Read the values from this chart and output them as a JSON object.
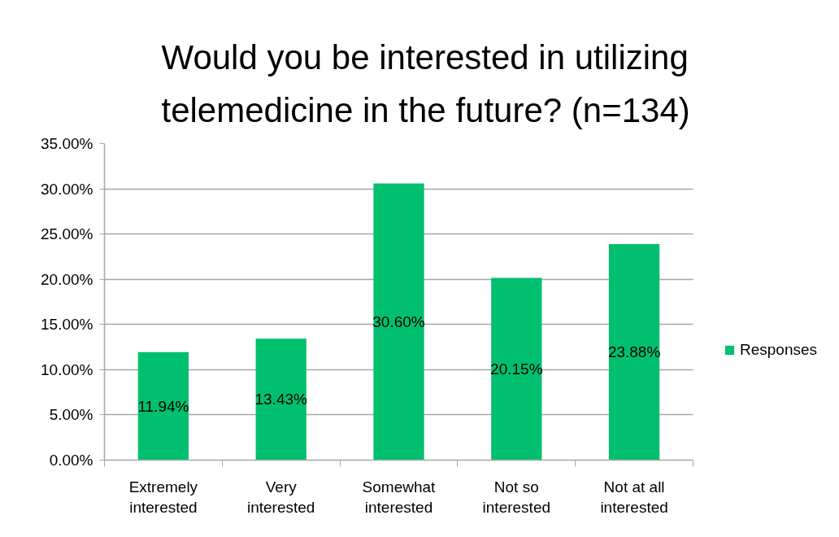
{
  "chart_data": {
    "type": "bar",
    "title": "Would you be interested in utilizing telemedicine in the future? (n=134)",
    "categories": [
      "Extremely interested",
      "Very interested",
      "Somewhat interested",
      "Not so interested",
      "Not at all interested"
    ],
    "series": [
      {
        "name": "Responses",
        "color": "#00bf6f",
        "values": [
          11.94,
          13.43,
          30.6,
          20.15,
          23.88
        ],
        "value_labels": [
          "11.94%",
          "13.43%",
          "30.60%",
          "20.15%",
          "23.88%"
        ]
      }
    ],
    "ylim": [
      0,
      35
    ],
    "yticks": [
      {
        "value": 0,
        "label": "0.00%"
      },
      {
        "value": 5,
        "label": "5.00%"
      },
      {
        "value": 10,
        "label": "10.00%"
      },
      {
        "value": 15,
        "label": "15.00%"
      },
      {
        "value": 20,
        "label": "20.00%"
      },
      {
        "value": 25,
        "label": "25.00%"
      },
      {
        "value": 30,
        "label": "30.00%"
      },
      {
        "value": 35,
        "label": "35.00%"
      }
    ],
    "grid": "y",
    "legend": "right"
  }
}
